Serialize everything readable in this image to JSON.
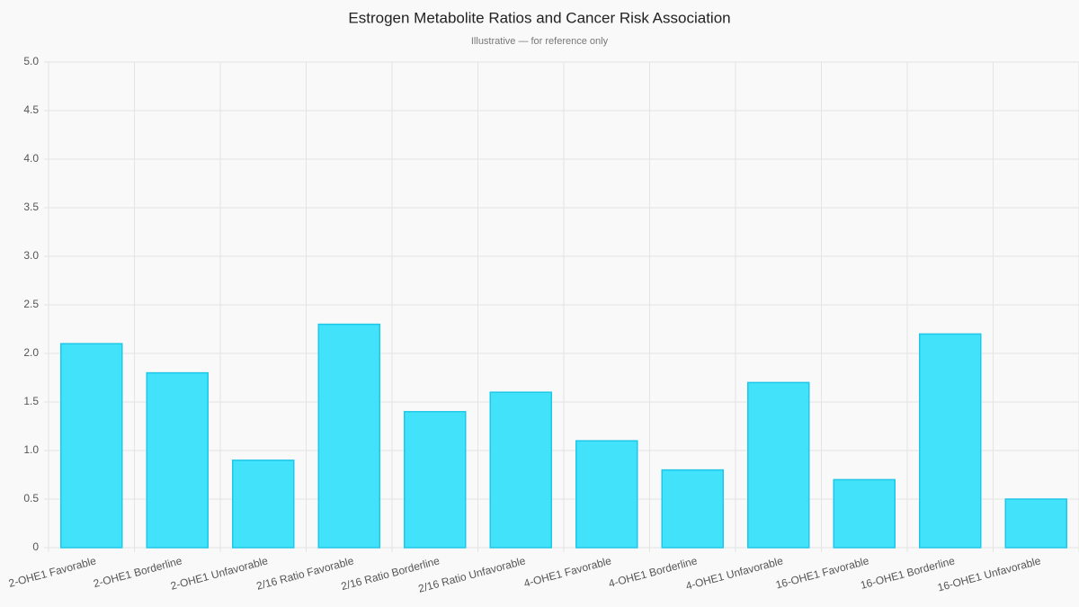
{
  "chart_data": {
    "type": "bar",
    "title": "Estrogen Metabolite Ratios and Cancer Risk Association",
    "subtitle": "Illustrative — for reference only",
    "categories": [
      "2-OHE1 Favorable",
      "2-OHE1 Borderline",
      "2-OHE1 Unfavorable",
      "2/16 Ratio Favorable",
      "2/16 Ratio Borderline",
      "2/16 Ratio Unfavorable",
      "4-OHE1 Favorable",
      "4-OHE1 Borderline",
      "4-OHE1 Unfavorable",
      "16-OHE1 Favorable",
      "16-OHE1 Borderline",
      "16-OHE1 Unfavorable"
    ],
    "values": [
      2.1,
      1.8,
      0.9,
      2.3,
      1.4,
      1.6,
      1.1,
      0.8,
      1.7,
      0.7,
      2.2,
      0.5
    ],
    "color": "#38e0fa",
    "ylim": [
      0,
      5
    ],
    "yticks": [
      0,
      0.5,
      {
        "value": 1,
        "label": "1.0"
      },
      1.5,
      {
        "value": 2,
        "label": "2.0"
      },
      2.5,
      {
        "value": 3,
        "label": "3.0"
      },
      3.5,
      {
        "value": 4,
        "label": "4.0"
      },
      4.5,
      {
        "value": 5,
        "label": "5.0"
      }
    ],
    "grid": true
  }
}
